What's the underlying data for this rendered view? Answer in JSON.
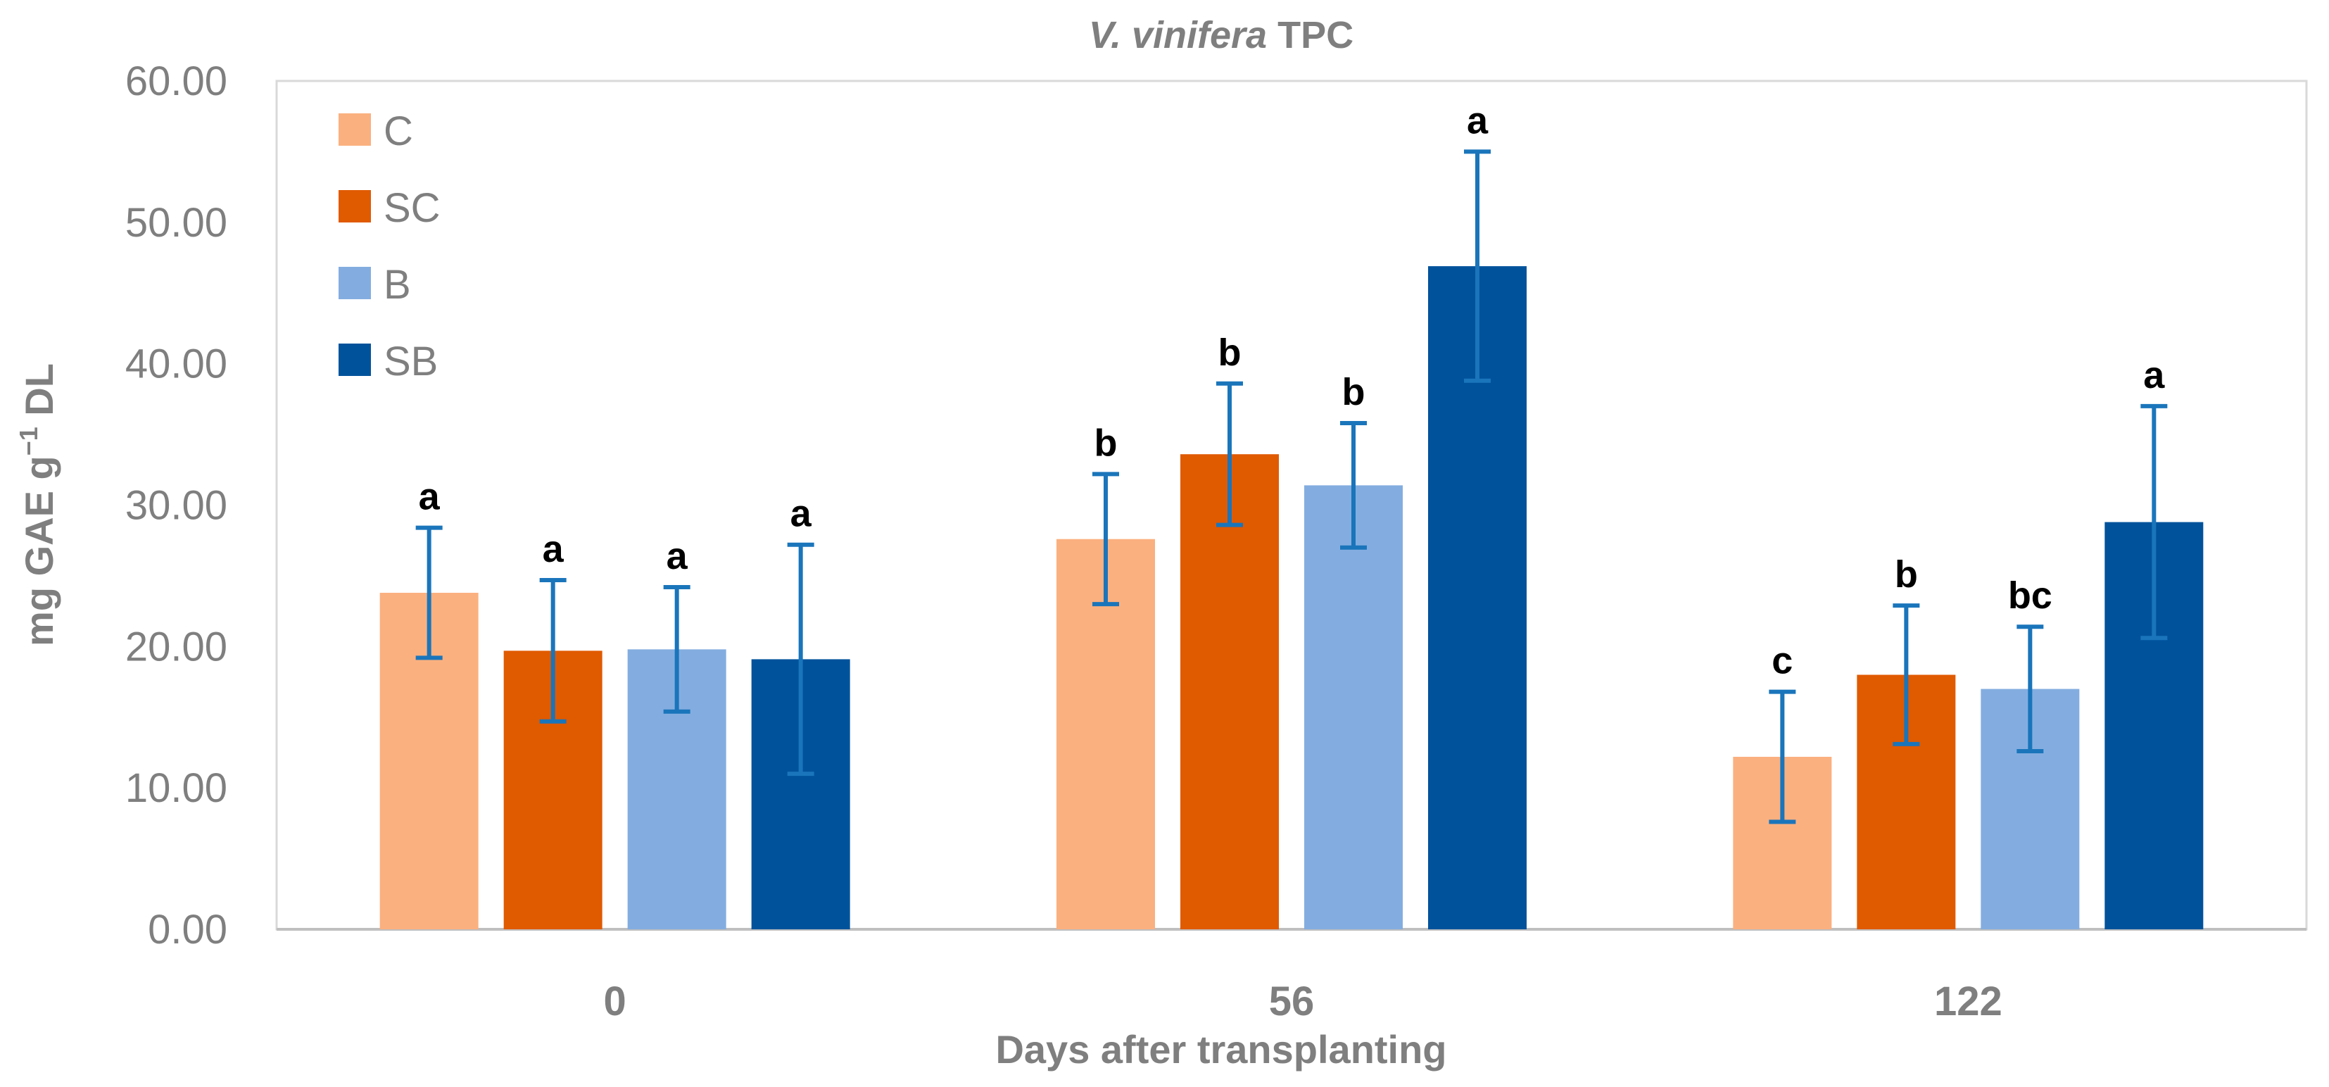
{
  "chart_data": {
    "type": "bar",
    "title_italic": "V. vinifera",
    "title_rest": "TPC",
    "xlabel": "Days after transplanting",
    "ylabel_prefix": "mg GAE g",
    "ylabel_sup": "−1",
    "ylabel_suffix": "DL",
    "ylim": [
      0,
      60
    ],
    "yticks": [
      "0.00",
      "10.00",
      "20.00",
      "30.00",
      "40.00",
      "50.00",
      "60.00"
    ],
    "categories": [
      "0",
      "56",
      "122"
    ],
    "legend_position": "top-left",
    "series": [
      {
        "name": "C",
        "color": "#fbb07f",
        "values": [
          23.8,
          27.6,
          12.2
        ],
        "errors": [
          4.6,
          4.6,
          4.6
        ],
        "letters": [
          "a",
          "b",
          "c"
        ]
      },
      {
        "name": "SC",
        "color": "#e05a00",
        "values": [
          19.7,
          33.6,
          18.0
        ],
        "errors": [
          5.0,
          5.0,
          4.9
        ],
        "letters": [
          "a",
          "b",
          "b"
        ]
      },
      {
        "name": "B",
        "color": "#83ade0",
        "values": [
          19.8,
          31.4,
          17.0
        ],
        "errors": [
          4.4,
          4.4,
          4.4
        ],
        "letters": [
          "a",
          "b",
          "bc"
        ]
      },
      {
        "name": "SB",
        "color": "#00529b",
        "values": [
          19.1,
          46.9,
          28.8
        ],
        "errors": [
          8.1,
          8.1,
          8.2
        ],
        "letters": [
          "a",
          "a",
          "a"
        ]
      }
    ],
    "error_bar_color": "#1a75bb"
  }
}
